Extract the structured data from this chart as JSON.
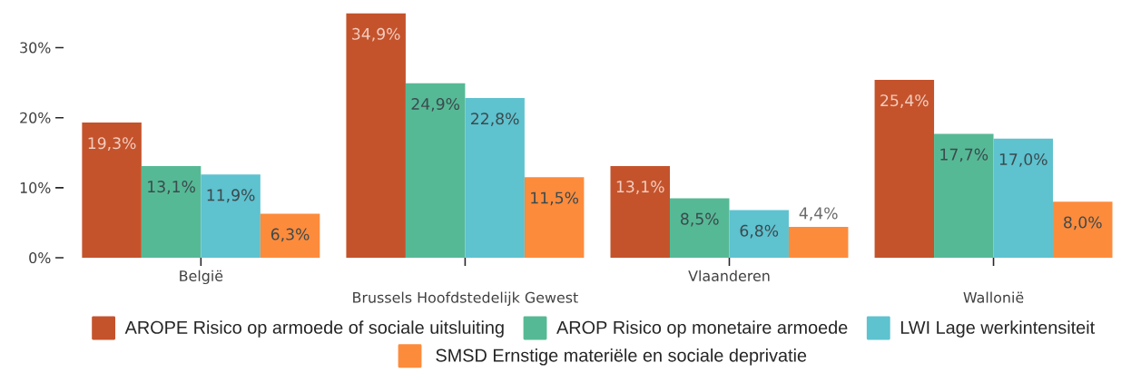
{
  "chart_data": {
    "type": "bar",
    "categories": [
      "België",
      "Brussels Hoofdstedelijk Gewest",
      "Vlaanderen",
      "Wallonië"
    ],
    "series": [
      {
        "name": "AROPE Risico op armoede of sociale uitsluiting",
        "color": "#c4532c",
        "values": [
          19.3,
          34.9,
          13.1,
          25.4
        ],
        "value_labels": [
          "19,3%",
          "34,9%",
          "13,1%",
          "25,4%"
        ]
      },
      {
        "name": "AROP Risico op monetaire armoede",
        "color": "#56b995",
        "values": [
          13.1,
          24.9,
          8.5,
          17.7
        ],
        "value_labels": [
          "13,1%",
          "24,9%",
          "8,5%",
          "17,7%"
        ]
      },
      {
        "name": "LWI Lage werkintensiteit",
        "color": "#5ec2cf",
        "values": [
          11.9,
          22.8,
          6.8,
          17.0
        ],
        "value_labels": [
          "11,9%",
          "22,8%",
          "6,8%",
          "17,0%"
        ]
      },
      {
        "name": "SMSD Ernstige materiële en sociale deprivatie",
        "color": "#fd8b3c",
        "values": [
          6.3,
          11.5,
          4.4,
          8.0
        ],
        "value_labels": [
          "6,3%",
          "11,5%",
          "4,4%",
          "8,0%"
        ]
      }
    ],
    "ylim": [
      0,
      35
    ],
    "yticks": [
      {
        "value": 0,
        "label": "0%"
      },
      {
        "value": 10,
        "label": "10%"
      },
      {
        "value": 20,
        "label": "20%"
      },
      {
        "value": 30,
        "label": "30%"
      }
    ],
    "legend": "bottom"
  }
}
